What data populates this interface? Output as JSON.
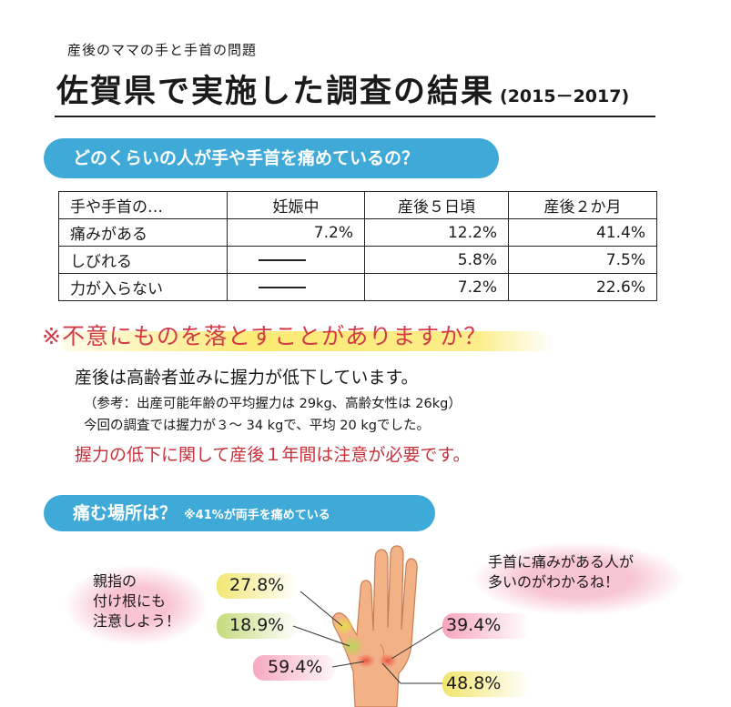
{
  "header": {
    "subtitle": "産後のママの手と手首の問題",
    "title": "佐賀県で実施した調査の結果",
    "years": "(2015－2017)"
  },
  "section1": {
    "heading": "どのくらいの人が手や手首を痛めているの？",
    "table": {
      "headers": [
        "手や手首の…",
        "妊娠中",
        "産後５日頃",
        "産後２か月"
      ],
      "rows": [
        {
          "label": "痛みがある",
          "cells": [
            "7.2%",
            "12.2%",
            "41.4%"
          ]
        },
        {
          "label": "しびれる",
          "cells": [
            "—",
            "5.8%",
            "7.5%"
          ]
        },
        {
          "label": "力が入らない",
          "cells": [
            "—",
            "7.2%",
            "22.6%"
          ]
        }
      ]
    }
  },
  "question": {
    "text": "※不意にものを落とすことがありますか？",
    "line1": "産後は高齢者並みに握力が低下しています。",
    "line2": "（参考：出産可能年齢の平均握力は 29kg、高齢女性は 26kg）",
    "line3": "今回の調査では握力が３～ 34 kgで、平均 20 kgでした。",
    "warning": "握力の低下に関して産後１年間は注意が必要です。"
  },
  "section2": {
    "heading": "痛む場所は？",
    "subheading": "※41%が両手を痛めている",
    "note_left": [
      "親指の",
      "付け根にも",
      "注意しよう！"
    ],
    "note_right": [
      "手首に痛みがある人が",
      "多いのがわかるね！"
    ],
    "percentages": {
      "p1": "27.8%",
      "p2": "18.9%",
      "p3": "59.4%",
      "p4": "39.4%",
      "p5": "48.8%"
    }
  },
  "colors": {
    "accent_blue": "#3fa9d8",
    "warning_red": "#d23a47",
    "highlight_yellow": "#f5e36a",
    "highlight_green": "#c8de7e",
    "highlight_pink": "#f5b0c3",
    "skin": "#f2b083"
  }
}
